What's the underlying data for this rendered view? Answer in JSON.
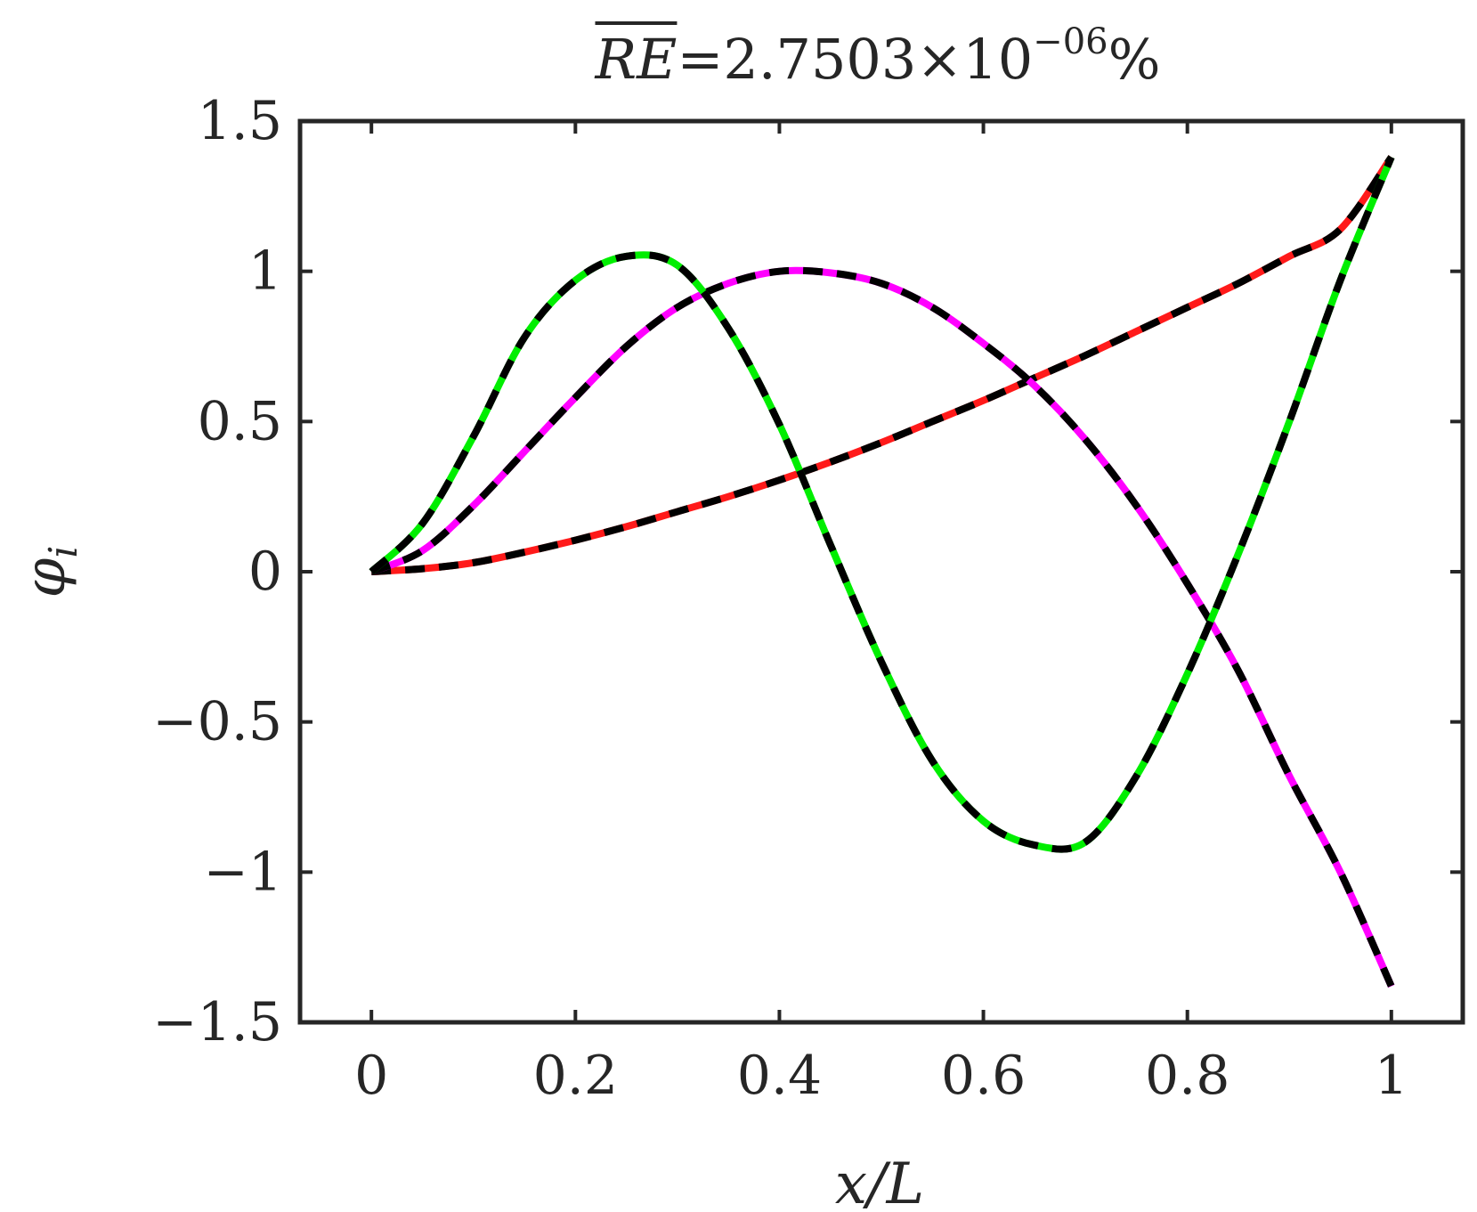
{
  "chart_data": {
    "type": "line",
    "title": {
      "lhs": "RE",
      "mantissa": "=2.7503×10",
      "exponent": "−06",
      "unit": "%"
    },
    "xlabel": "x/L",
    "ylabel": {
      "symbol": "φ",
      "subscript": "i"
    },
    "xlim": [
      -0.07,
      1.07
    ],
    "ylim": [
      -1.5,
      1.5
    ],
    "xticks": [
      0,
      0.2,
      0.4,
      0.6,
      0.8,
      1
    ],
    "xtick_labels": [
      "0",
      "0.2",
      "0.4",
      "0.6",
      "0.8",
      "1"
    ],
    "yticks": [
      1.5,
      1,
      0.5,
      0,
      -0.5,
      -1,
      -1.5
    ],
    "ytick_labels": [
      "1.5",
      "1",
      "0.5",
      "0",
      "−0.5",
      "−1",
      "−1.5"
    ],
    "grid": false,
    "colors": {
      "axes": "#262626",
      "mode1": "#ff1a1a",
      "mode2": "#ff00ff",
      "mode3": "#00ee00",
      "overlay": "#000000"
    },
    "series": [
      {
        "color": "#ff1a1a",
        "line_style": "solid with black dashed overlay",
        "x": [
          0,
          0.05,
          0.1,
          0.15,
          0.2,
          0.25,
          0.3,
          0.35,
          0.4,
          0.45,
          0.5,
          0.55,
          0.6,
          0.65,
          0.7,
          0.75,
          0.8,
          0.85,
          0.9,
          0.95,
          1.0
        ],
        "values": [
          0.0,
          0.01,
          0.03,
          0.065,
          0.105,
          0.15,
          0.2,
          0.25,
          0.305,
          0.365,
          0.43,
          0.5,
          0.57,
          0.645,
          0.72,
          0.8,
          0.88,
          0.96,
          1.05,
          1.14,
          1.38
        ]
      },
      {
        "color": "#ff00ff",
        "line_style": "solid with black dashed overlay",
        "x": [
          0,
          0.05,
          0.1,
          0.15,
          0.2,
          0.25,
          0.3,
          0.35,
          0.4,
          0.45,
          0.5,
          0.55,
          0.6,
          0.65,
          0.7,
          0.75,
          0.8,
          0.85,
          0.9,
          0.95,
          1.0
        ],
        "values": [
          0.0,
          0.07,
          0.22,
          0.4,
          0.58,
          0.75,
          0.88,
          0.96,
          1.0,
          0.995,
          0.96,
          0.88,
          0.76,
          0.62,
          0.44,
          0.22,
          -0.04,
          -0.33,
          -0.68,
          -1.0,
          -1.38
        ]
      },
      {
        "color": "#00ee00",
        "line_style": "solid with black dashed overlay",
        "x": [
          0,
          0.05,
          0.1,
          0.15,
          0.2,
          0.25,
          0.3,
          0.35,
          0.4,
          0.45,
          0.5,
          0.55,
          0.6,
          0.65,
          0.7,
          0.75,
          0.8,
          0.85,
          0.9,
          0.95,
          1.0
        ],
        "values": [
          0.0,
          0.16,
          0.45,
          0.78,
          0.97,
          1.05,
          1.02,
          0.81,
          0.49,
          0.09,
          -0.3,
          -0.63,
          -0.83,
          -0.91,
          -0.9,
          -0.68,
          -0.34,
          0.06,
          0.5,
          0.97,
          1.38
        ]
      }
    ]
  }
}
